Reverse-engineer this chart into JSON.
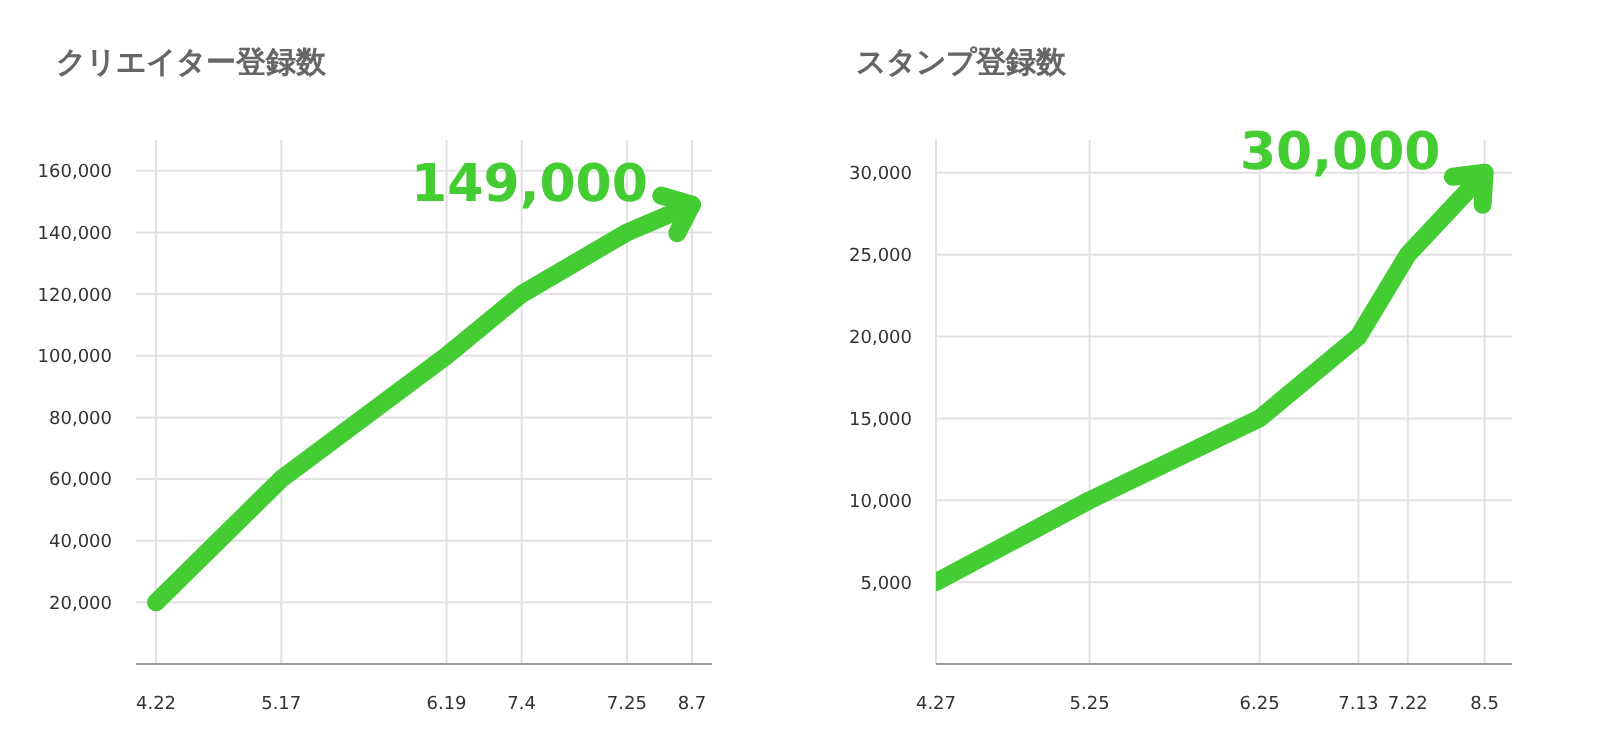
{
  "chart_data": [
    {
      "type": "line",
      "title": "クリエイター登録数",
      "x": [
        "--04-22",
        "--05-17",
        "--06-19",
        "--07-04",
        "--07-25",
        "--08-07"
      ],
      "series": [
        {
          "color": "#44cc33",
          "values": [
            20000,
            60000,
            100000,
            120000,
            140000,
            149000
          ]
        }
      ],
      "xlim": [
        "--04-18",
        "--08-11"
      ],
      "xticks": [
        {
          "value": "--04-22",
          "label": "4.22"
        },
        {
          "value": "--05-17",
          "label": "5.17"
        },
        {
          "value": "--06-19",
          "label": "6.19"
        },
        {
          "value": "--07-04",
          "label": "7.4"
        },
        {
          "value": "--07-25",
          "label": "7.25"
        },
        {
          "value": "--08-07",
          "label": "8.7"
        }
      ],
      "ylim": [
        0,
        170000
      ],
      "yticks": [
        {
          "value": 20000,
          "label": "20,000"
        },
        {
          "value": 40000,
          "label": "40,000"
        },
        {
          "value": 60000,
          "label": "60,000"
        },
        {
          "value": 80000,
          "label": "80,000"
        },
        {
          "value": 100000,
          "label": "100,000"
        },
        {
          "value": 120000,
          "label": "120,000"
        },
        {
          "value": 140000,
          "label": "140,000"
        },
        {
          "value": 160000,
          "label": "160,000"
        }
      ],
      "annotations": [
        {
          "text": "149,000",
          "x": "--08-07",
          "y": 149000
        }
      ],
      "grid": true,
      "legend": false,
      "marker": "none",
      "line_style": "solid"
    },
    {
      "type": "line",
      "title": "スタンプ登録数",
      "x": [
        "--04-27",
        "--05-25",
        "--06-25",
        "--07-13",
        "--07-22",
        "--08-05"
      ],
      "series": [
        {
          "color": "#44cc33",
          "values": [
            5000,
            10000,
            15000,
            20000,
            25000,
            30000
          ]
        }
      ],
      "xlim": [
        "--04-27",
        "--08-10"
      ],
      "xticks": [
        {
          "value": "--04-27",
          "label": "4.27"
        },
        {
          "value": "--05-25",
          "label": "5.25"
        },
        {
          "value": "--06-25",
          "label": "6.25"
        },
        {
          "value": "--07-13",
          "label": "7.13"
        },
        {
          "value": "--07-22",
          "label": "7.22"
        },
        {
          "value": "--08-05",
          "label": "8.5"
        }
      ],
      "ylim": [
        0,
        32000
      ],
      "yticks": [
        {
          "value": 5000,
          "label": "5,000"
        },
        {
          "value": 10000,
          "label": "10,000"
        },
        {
          "value": 15000,
          "label": "15,000"
        },
        {
          "value": 20000,
          "label": "20,000"
        },
        {
          "value": 25000,
          "label": "25,000"
        },
        {
          "value": 30000,
          "label": "30,000"
        }
      ],
      "annotations": [
        {
          "text": "30,000",
          "x": "--08-05",
          "y": 30000
        }
      ],
      "grid": true,
      "legend": false,
      "marker": "none",
      "line_style": "solid"
    }
  ]
}
